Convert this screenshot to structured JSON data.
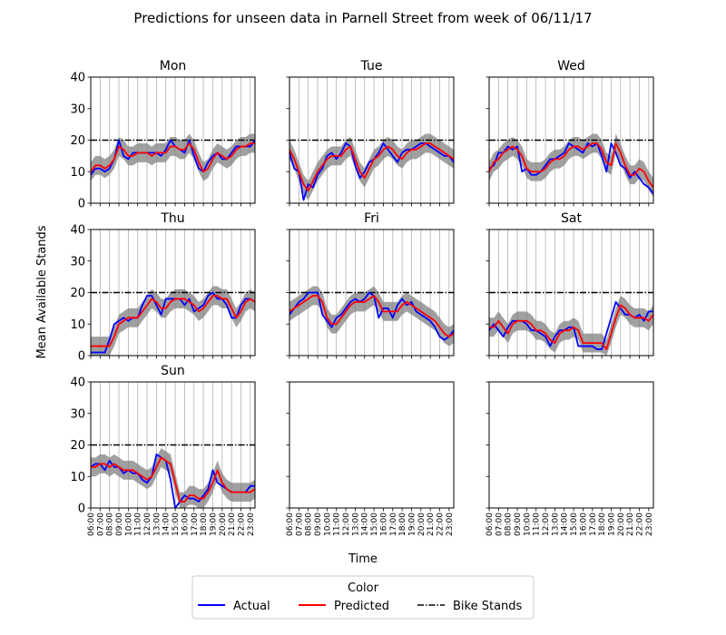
{
  "figure": {
    "title": "Predictions for unseen data in Parnell Street from week of 06/11/17",
    "xlabel": "Time",
    "ylabel": "Mean Available Stands"
  },
  "legend": {
    "title": "Color",
    "placement": "bottom-center",
    "entries": [
      {
        "label": "Actual",
        "color": "#0000ff",
        "style": "solid"
      },
      {
        "label": "Predicted",
        "color": "#ff0000",
        "style": "solid"
      },
      {
        "label": "Bike Stands",
        "color": "#000000",
        "style": "dashdot"
      }
    ]
  },
  "chart_data": {
    "type": "line",
    "ylim": [
      0,
      40
    ],
    "yticks": [
      0,
      10,
      20,
      30,
      40
    ],
    "xlim": [
      6,
      23.5
    ],
    "xtick_labels": [
      "06:00",
      "07:00",
      "08:00",
      "09:00",
      "10:00",
      "11:00",
      "12:00",
      "13:00",
      "14:00",
      "15:00",
      "16:00",
      "17:00",
      "18:00",
      "19:00",
      "20:00",
      "21:00",
      "22:00",
      "23:00"
    ],
    "grid": "vertical",
    "bike_stands": 20,
    "band_color": "#808080",
    "x": [
      6,
      6.5,
      7,
      7.5,
      8,
      8.5,
      9,
      9.5,
      10,
      10.5,
      11,
      11.5,
      12,
      12.5,
      13,
      13.5,
      14,
      14.5,
      15,
      15.5,
      16,
      16.5,
      17,
      17.5,
      18,
      18.5,
      19,
      19.5,
      20,
      20.5,
      21,
      21.5,
      22,
      22.5,
      23,
      23.5
    ],
    "panels": [
      {
        "name": "Mon",
        "actual": [
          9,
          11,
          11,
          10,
          11,
          14,
          20,
          15,
          14,
          16,
          16,
          16,
          16,
          16,
          16,
          15,
          17,
          20,
          18,
          17,
          16,
          20,
          15,
          11,
          10,
          13,
          15,
          16,
          14,
          14,
          16,
          18,
          18,
          18,
          18,
          20
        ],
        "predicted": [
          10,
          12,
          12,
          11,
          12,
          14,
          18,
          17,
          15,
          15,
          16,
          16,
          16,
          15,
          16,
          16,
          16,
          18,
          18,
          17,
          17,
          19,
          17,
          13,
          10,
          11,
          14,
          16,
          15,
          14,
          15,
          17,
          18,
          18,
          19,
          19
        ]
      },
      {
        "name": "Tue",
        "actual": [
          16,
          11,
          10,
          1,
          6,
          5,
          9,
          11,
          15,
          16,
          14,
          16,
          19,
          18,
          12,
          8,
          10,
          13,
          14,
          16,
          19,
          17,
          15,
          13,
          16,
          17,
          17,
          18,
          19,
          19,
          18,
          17,
          16,
          15,
          15,
          13
        ],
        "predicted": [
          17,
          14,
          10,
          6,
          4,
          7,
          10,
          12,
          14,
          15,
          15,
          15,
          17,
          18,
          14,
          10,
          8,
          11,
          14,
          15,
          17,
          18,
          17,
          15,
          14,
          16,
          17,
          17,
          18,
          19,
          19,
          18,
          17,
          16,
          15,
          14
        ]
      },
      {
        "name": "Wed",
        "actual": [
          11,
          12,
          16,
          16,
          18,
          17,
          18,
          10,
          11,
          9,
          9,
          10,
          12,
          14,
          14,
          15,
          16,
          19,
          18,
          17,
          16,
          19,
          18,
          19,
          15,
          10,
          19,
          16,
          12,
          11,
          8,
          10,
          8,
          6,
          5,
          3
        ],
        "predicted": [
          10,
          13,
          14,
          16,
          17,
          18,
          17,
          15,
          11,
          10,
          10,
          10,
          11,
          13,
          14,
          14,
          15,
          17,
          18,
          18,
          17,
          18,
          19,
          19,
          17,
          13,
          12,
          19,
          16,
          12,
          9,
          9,
          11,
          10,
          7,
          5
        ]
      },
      {
        "name": "Thu",
        "actual": [
          1,
          1,
          1,
          1,
          5,
          10,
          11,
          12,
          11,
          12,
          12,
          16,
          19,
          19,
          16,
          13,
          18,
          18,
          18,
          18,
          16,
          18,
          14,
          15,
          16,
          19,
          20,
          18,
          18,
          16,
          12,
          12,
          16,
          18,
          18,
          17
        ],
        "predicted": [
          3,
          3,
          3,
          3,
          3,
          6,
          10,
          11,
          12,
          12,
          12,
          14,
          16,
          18,
          17,
          15,
          15,
          17,
          18,
          18,
          18,
          17,
          16,
          14,
          15,
          17,
          19,
          19,
          18,
          18,
          15,
          12,
          14,
          17,
          18,
          17
        ]
      },
      {
        "name": "Fri",
        "actual": [
          13,
          15,
          17,
          18,
          20,
          20,
          20,
          13,
          11,
          9,
          12,
          13,
          15,
          17,
          18,
          17,
          18,
          20,
          19,
          12,
          15,
          15,
          12,
          16,
          18,
          16,
          17,
          14,
          13,
          12,
          11,
          9,
          6,
          5,
          6,
          8
        ],
        "predicted": [
          14,
          15,
          16,
          17,
          18,
          19,
          19,
          17,
          12,
          10,
          10,
          12,
          14,
          16,
          17,
          17,
          17,
          18,
          19,
          17,
          14,
          14,
          14,
          14,
          16,
          17,
          16,
          15,
          14,
          13,
          12,
          11,
          9,
          7,
          6,
          7
        ]
      },
      {
        "name": "Sat",
        "actual": [
          8,
          10,
          8,
          6,
          9,
          11,
          11,
          11,
          10,
          8,
          8,
          7,
          6,
          3,
          6,
          8,
          8,
          9,
          9,
          3,
          3,
          3,
          3,
          2,
          2,
          7,
          12,
          17,
          15,
          13,
          13,
          12,
          13,
          11,
          14,
          14
        ],
        "predicted": [
          9,
          9,
          11,
          9,
          7,
          10,
          11,
          11,
          11,
          10,
          8,
          8,
          7,
          5,
          4,
          7,
          8,
          8,
          9,
          8,
          4,
          4,
          4,
          4,
          4,
          2,
          7,
          12,
          16,
          15,
          13,
          12,
          12,
          12,
          11,
          13
        ]
      },
      {
        "name": "Sun",
        "actual": [
          13,
          14,
          14,
          12,
          15,
          13,
          13,
          11,
          12,
          11,
          11,
          9,
          8,
          10,
          17,
          16,
          15,
          9,
          0,
          2,
          4,
          3,
          3,
          2,
          4,
          6,
          12,
          8,
          7,
          6,
          5,
          5,
          5,
          5,
          7,
          7
        ],
        "predicted": [
          13,
          13,
          14,
          14,
          13,
          14,
          13,
          12,
          12,
          12,
          11,
          10,
          9,
          10,
          13,
          16,
          15,
          14,
          8,
          2,
          2,
          4,
          4,
          3,
          3,
          5,
          8,
          12,
          8,
          6,
          5,
          5,
          5,
          5,
          5,
          6
        ]
      },
      {
        "name": "",
        "actual": [],
        "predicted": []
      },
      {
        "name": "",
        "actual": [],
        "predicted": []
      }
    ]
  }
}
